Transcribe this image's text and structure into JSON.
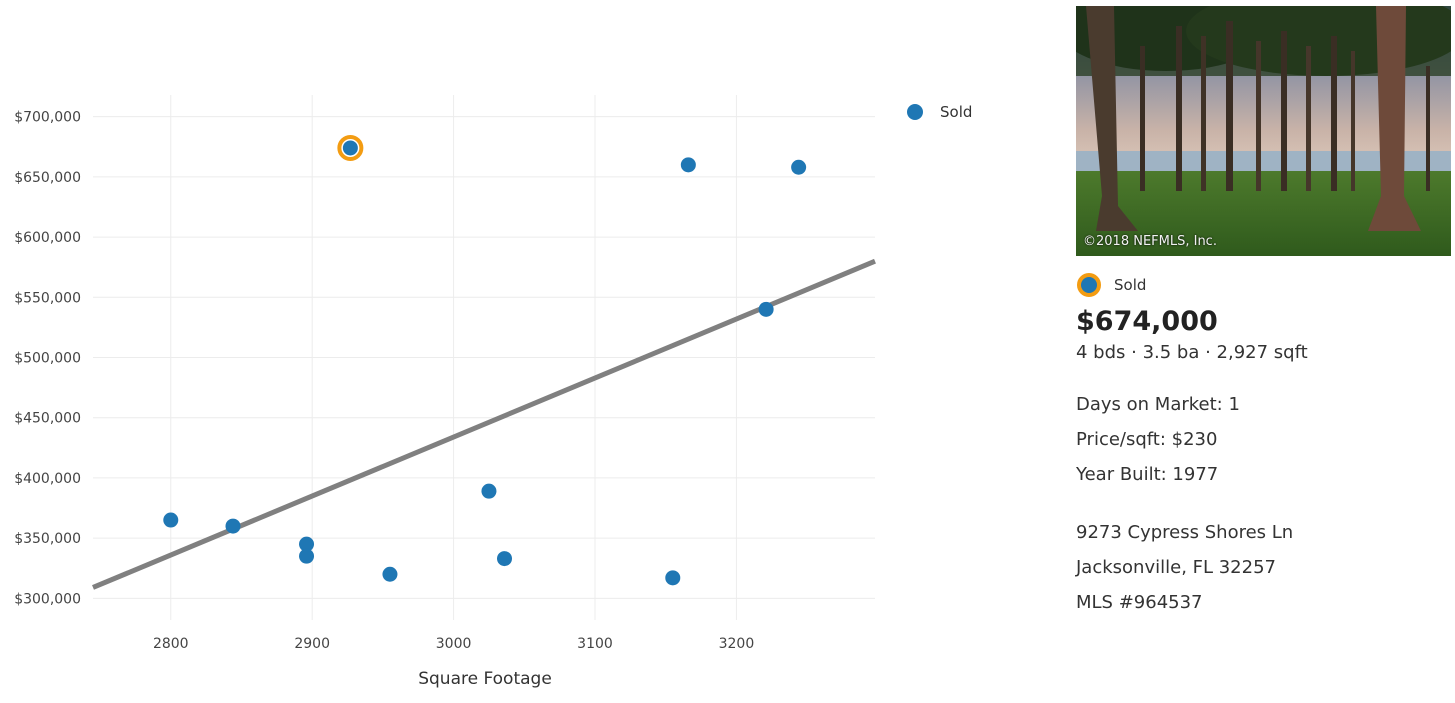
{
  "chart_data": {
    "type": "scatter",
    "xlabel": "Square Footage",
    "ylabel": "",
    "xlim": [
      2745,
      3298
    ],
    "ylim": [
      282000,
      718000
    ],
    "x_ticks": [
      2800,
      2900,
      3000,
      3100,
      3200
    ],
    "y_ticks": [
      300000,
      350000,
      400000,
      450000,
      500000,
      550000,
      600000,
      650000,
      700000
    ],
    "y_tick_labels": [
      "$300,000",
      "$350,000",
      "$400,000",
      "$450,000",
      "$500,000",
      "$550,000",
      "$600,000",
      "$650,000",
      "$700,000"
    ],
    "x_tick_labels": [
      "2800",
      "2900",
      "3000",
      "3100",
      "3200"
    ],
    "legend_position": "top-right",
    "grid": true,
    "series": [
      {
        "name": "Sold",
        "color": "#1f77b4",
        "points": [
          {
            "x": 2800,
            "y": 365000
          },
          {
            "x": 2844,
            "y": 360000
          },
          {
            "x": 2896,
            "y": 345000
          },
          {
            "x": 2896,
            "y": 335000
          },
          {
            "x": 2927,
            "y": 674000,
            "highlighted": true
          },
          {
            "x": 2955,
            "y": 320000
          },
          {
            "x": 3025,
            "y": 389000
          },
          {
            "x": 3036,
            "y": 333000
          },
          {
            "x": 3155,
            "y": 317000
          },
          {
            "x": 3166,
            "y": 660000
          },
          {
            "x": 3221,
            "y": 540000
          },
          {
            "x": 3244,
            "y": 658000
          }
        ]
      }
    ],
    "trendline": {
      "color": "#808080",
      "from": {
        "x": 2745,
        "y": 309000
      },
      "to": {
        "x": 3298,
        "y": 580000
      }
    },
    "highlight_color": "#f39c12"
  },
  "photo": {
    "credit": "©2018 NEFMLS, Inc."
  },
  "listing": {
    "status": "Sold",
    "price": "$674,000",
    "summary": "4 bds · 3.5 ba · 2,927 sqft",
    "days_on_market": "Days on Market: 1",
    "price_per_sqft": "Price/sqft: $230",
    "year_built": "Year Built: 1977",
    "street": "9273 Cypress Shores Ln",
    "city_state_zip": "Jacksonville, FL 32257",
    "mls": "MLS #964537"
  }
}
